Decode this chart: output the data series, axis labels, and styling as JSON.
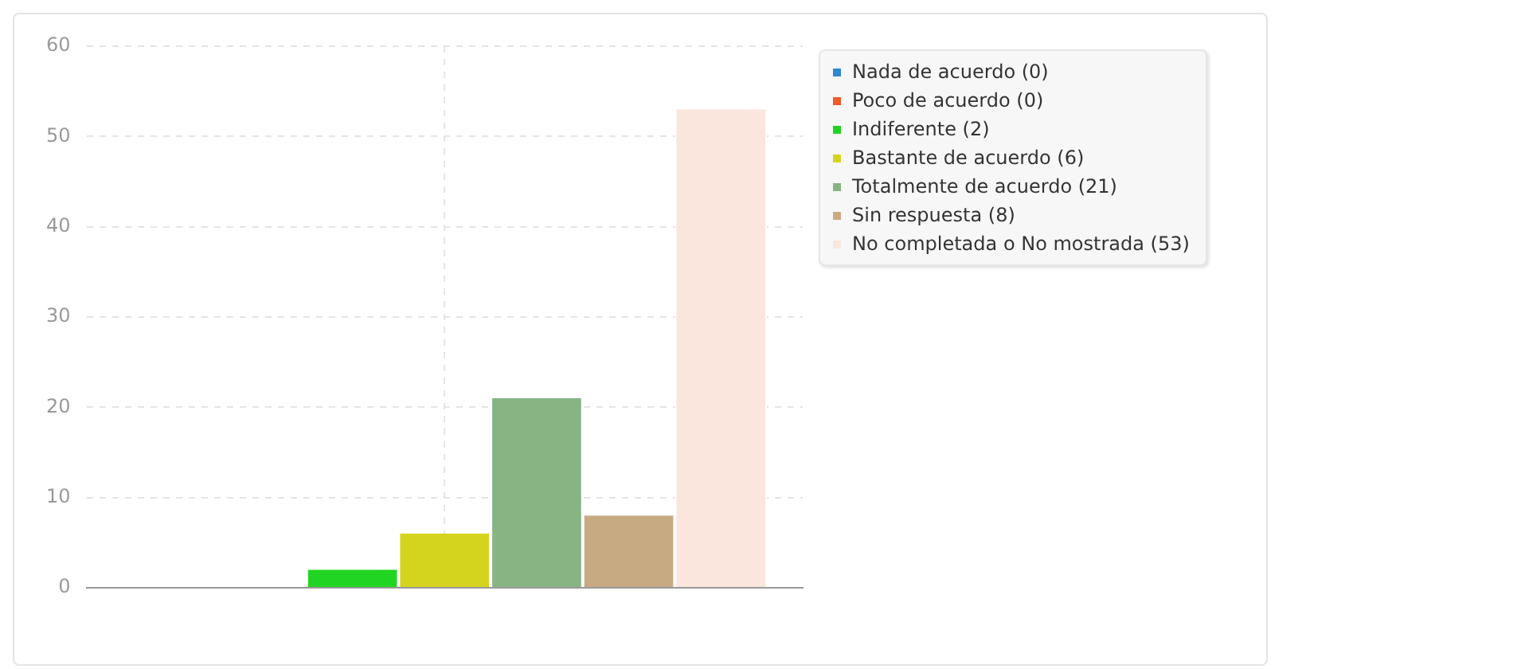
{
  "chart_data": {
    "type": "bar",
    "categories": [
      null
    ],
    "series": [
      {
        "name": "Nada de acuerdo (0)",
        "color": "#2f86d0",
        "values": [
          0
        ]
      },
      {
        "name": "Poco de acuerdo (0)",
        "color": "#f05a28",
        "values": [
          0
        ]
      },
      {
        "name": "Indiferente (2)",
        "color": "#22d422",
        "values": [
          2
        ]
      },
      {
        "name": "Bastante de acuerdo (6)",
        "color": "#d4d41e",
        "values": [
          6
        ]
      },
      {
        "name": "Totalmente de acuerdo (21)",
        "color": "#88b484",
        "values": [
          21
        ]
      },
      {
        "name": "Sin respuesta (8)",
        "color": "#c8aa82",
        "values": [
          8
        ]
      },
      {
        "name": "No completada o No mostrada (53)",
        "color": "#fae6dc",
        "values": [
          53
        ]
      }
    ],
    "ylim": [
      0,
      60
    ],
    "yticks": [
      0,
      10,
      20,
      30,
      40,
      50,
      60
    ],
    "grid": true,
    "legend": "right"
  }
}
